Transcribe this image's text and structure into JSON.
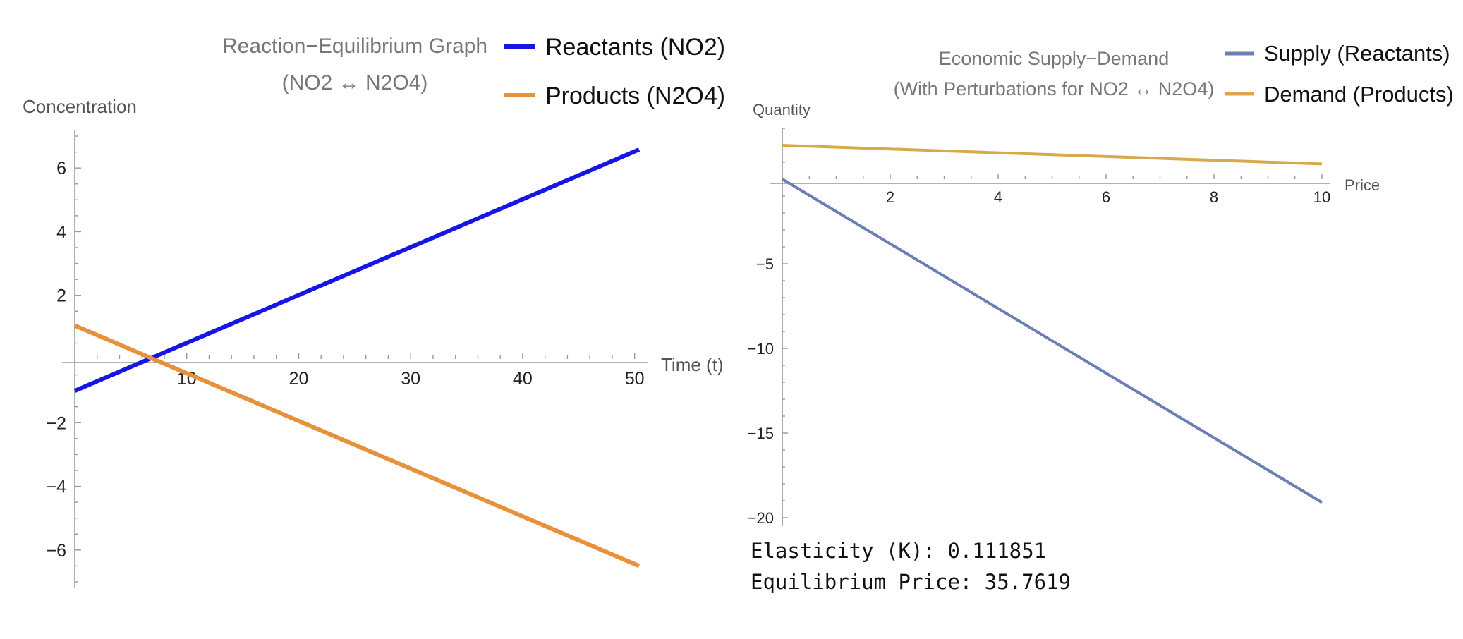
{
  "chart_data": [
    {
      "type": "line",
      "title": [
        "Reaction−Equilibrium Graph",
        "(NO2 ↔ N2O4)"
      ],
      "xlabel": "Time (t)",
      "ylabel": "Concentration",
      "xlim": [
        0,
        50.4
      ],
      "ylim": [
        -7.2,
        7.2
      ],
      "x_ticks": [
        10,
        20,
        30,
        40,
        50
      ],
      "y_ticks": [
        -6,
        -4,
        -2,
        2,
        4,
        6
      ],
      "legend_position": "top-right",
      "series": [
        {
          "name": "Reactants (NO2)",
          "color": "#1515e6",
          "x": [
            0,
            50.4
          ],
          "y": [
            -1.0,
            6.58
          ]
        },
        {
          "name": "Products (N2O4)",
          "color": "#e8913c",
          "x": [
            0,
            50.4
          ],
          "y": [
            1.05,
            -6.5
          ]
        }
      ]
    },
    {
      "type": "line",
      "title": [
        "Economic Supply−Demand",
        "(With Perturbations for NO2 ↔ N2O4)"
      ],
      "xlabel": "Price",
      "ylabel": "Quantity",
      "xlim": [
        0,
        10
      ],
      "ylim": [
        -20.5,
        3.0
      ],
      "x_ticks": [
        2,
        4,
        6,
        8,
        10
      ],
      "y_ticks": [
        -5,
        -10,
        -15,
        -20
      ],
      "legend_position": "top-right",
      "series": [
        {
          "name": "Supply (Reactants)",
          "color": "#6b7fb5",
          "x": [
            0,
            10
          ],
          "y": [
            0,
            -19.1
          ]
        },
        {
          "name": "Demand (Products)",
          "color": "#d9a84a",
          "x": [
            0,
            10
          ],
          "y": [
            2.0,
            0.9
          ]
        }
      ]
    }
  ],
  "results": {
    "elasticity": "Elasticity (K): 0.111851",
    "equilibrium": "Equilibrium Price: 35.7619"
  }
}
